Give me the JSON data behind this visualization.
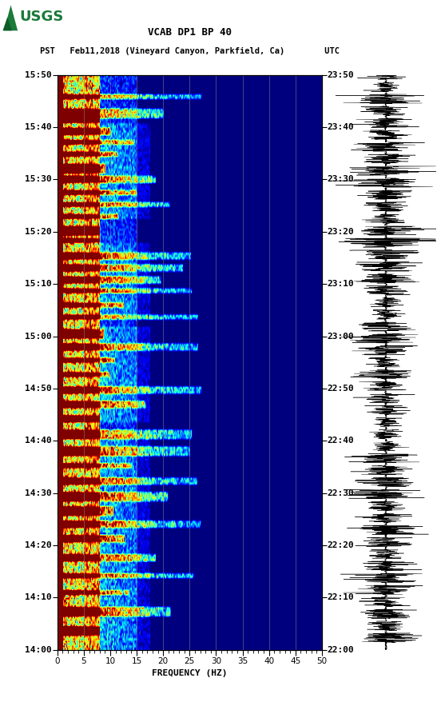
{
  "title_line1": "VCAB DP1 BP 40",
  "title_line2": "PST   Feb11,2018 (Vineyard Canyon, Parkfield, Ca)        UTC",
  "xlabel": "FREQUENCY (HZ)",
  "left_yticks": [
    "14:00",
    "14:10",
    "14:20",
    "14:30",
    "14:40",
    "14:50",
    "15:00",
    "15:10",
    "15:20",
    "15:30",
    "15:40",
    "15:50"
  ],
  "right_yticks": [
    "22:00",
    "22:10",
    "22:20",
    "22:30",
    "22:40",
    "22:50",
    "23:00",
    "23:10",
    "23:20",
    "23:30",
    "23:40",
    "23:50"
  ],
  "freq_min": 0,
  "freq_max": 50,
  "time_steps": 240,
  "freq_steps": 300,
  "background_color": "#ffffff",
  "seed": 42,
  "fig_width": 5.52,
  "fig_height": 8.93
}
